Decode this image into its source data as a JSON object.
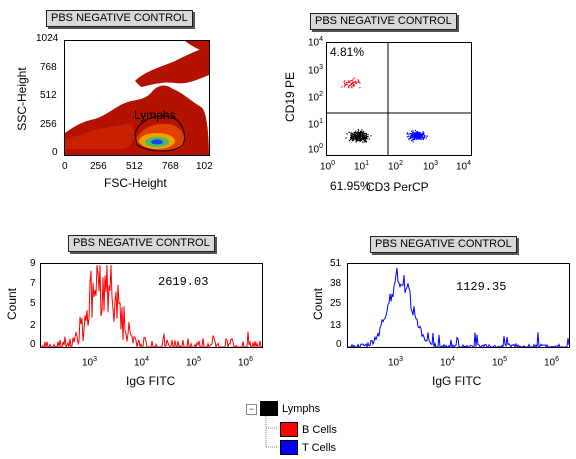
{
  "plot1": {
    "title": "PBS NEGATIVE CONTROL",
    "xlabel": "FSC-Height",
    "ylabel": "SSC-Height",
    "xticks": [
      "0",
      "256",
      "512",
      "768",
      "102"
    ],
    "yticks": [
      "1024",
      "768",
      "512",
      "256",
      "0"
    ],
    "gate_label": "Lymphs"
  },
  "plot2": {
    "title": "PBS NEGATIVE CONTROL",
    "xlabel": "CD3 PerCP",
    "ylabel": "CD19 PE",
    "quadrant_ul": "4.81%",
    "quadrant_ll": "61.95%",
    "xticks": [
      "10",
      "10",
      "10",
      "10",
      "10"
    ],
    "xexp": [
      "0",
      "1",
      "2",
      "3",
      "4"
    ],
    "yticks": [
      "10",
      "10",
      "10",
      "10",
      "10"
    ],
    "yexp": [
      "4",
      "3",
      "2",
      "1",
      "0"
    ]
  },
  "plot3": {
    "title": "PBS NEGATIVE CONTROL",
    "xlabel": "IgG FITC",
    "ylabel": "Count",
    "stat": "2619.03",
    "yticks": [
      "9",
      "7",
      "5",
      "2",
      "0"
    ],
    "xticks": [
      "10",
      "10",
      "10",
      "10"
    ],
    "xexp": [
      "3",
      "4",
      "5",
      "6"
    ],
    "color": "#ff0000"
  },
  "plot4": {
    "title": "PBS NEGATIVE CONTROL",
    "xlabel": "IgG FITC",
    "ylabel": "Count",
    "stat": "1129.35",
    "yticks": [
      "51",
      "38",
      "25",
      "13",
      "0"
    ],
    "xticks": [
      "10",
      "10",
      "10",
      "10"
    ],
    "xexp": [
      "3",
      "4",
      "5",
      "6"
    ],
    "color": "#0000ff"
  },
  "legend": {
    "root": "Lymphs",
    "root_color": "#000000",
    "children": [
      {
        "label": "B Cells",
        "color": "#ff0000"
      },
      {
        "label": "T Cells",
        "color": "#0000ff"
      }
    ]
  }
}
